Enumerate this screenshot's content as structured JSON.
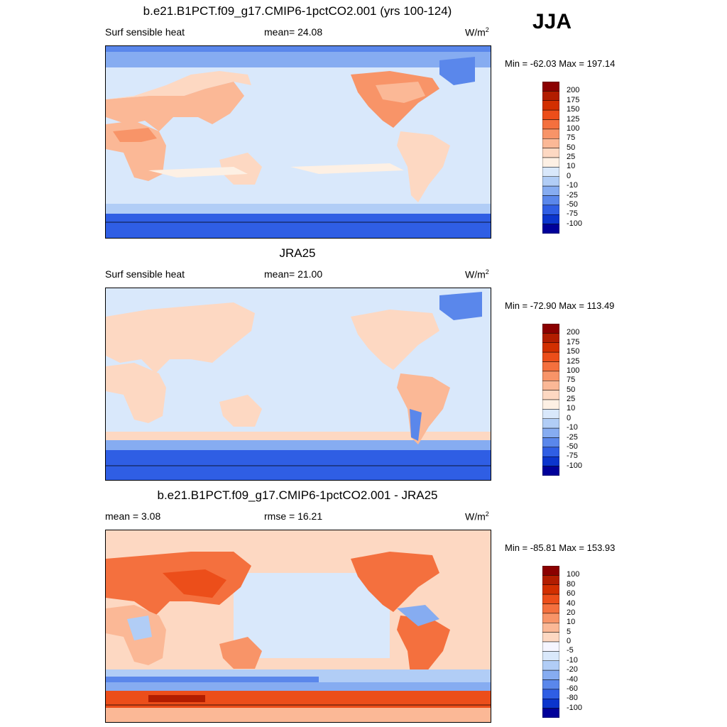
{
  "season": "JJA",
  "panels": [
    {
      "title": "b.e21.B1PCT.f09_g17.CMIP6-1pctCO2.001 (yrs 100-124)",
      "left_label": "Surf sensible heat",
      "center_label": "mean=  24.08",
      "units": "W/m",
      "units_sup": "2",
      "minmax": "Min = -62.03 Max = 197.14"
    },
    {
      "title": "JRA25",
      "left_label": "Surf sensible heat",
      "center_label": "mean=  21.00",
      "units": "W/m",
      "units_sup": "2",
      "minmax": "Min = -72.90 Max = 113.49"
    },
    {
      "title": "b.e21.B1PCT.f09_g17.CMIP6-1pctCO2.001 - JRA25",
      "left_label": "mean =   3.08",
      "center_label": "rmse =  16.21",
      "units": "W/m",
      "units_sup": "2",
      "minmax": "Min = -85.81 Max = 153.93"
    }
  ],
  "colorbars": {
    "abs": {
      "labels": [
        "200",
        "175",
        "150",
        "125",
        "100",
        "75",
        "50",
        "25",
        "10",
        "0",
        "-10",
        "-25",
        "-50",
        "-75",
        "-100"
      ],
      "colors": [
        "#8b0000",
        "#b21d00",
        "#d22f00",
        "#ec4e1a",
        "#f4703e",
        "#f89468",
        "#fbb896",
        "#fdd8c2",
        "#fdf0e4",
        "#d9e8fb",
        "#b1cdf6",
        "#86acf1",
        "#5a87eb",
        "#2f5ee4",
        "#0b35cd",
        "#00009a"
      ]
    },
    "diff": {
      "labels": [
        "100",
        "80",
        "60",
        "40",
        "20",
        "10",
        "5",
        "0",
        "-5",
        "-10",
        "-20",
        "-40",
        "-60",
        "-80",
        "-100"
      ],
      "colors": [
        "#8b0000",
        "#b21d00",
        "#d22f00",
        "#ec4e1a",
        "#f4703e",
        "#f89468",
        "#fbb896",
        "#fdd8c2",
        "#f5f5ff",
        "#d9e8fb",
        "#b1cdf6",
        "#86acf1",
        "#5a87eb",
        "#2f5ee4",
        "#0b35cd",
        "#00009a"
      ]
    }
  },
  "chart_data": [
    {
      "type": "heatmap",
      "title": "b.e21.B1PCT.f09_g17.CMIP6-1pctCO2.001 (yrs 100-124)",
      "variable": "Surf sensible heat",
      "season": "JJA",
      "units": "W/m2",
      "mean": 24.08,
      "min": -62.03,
      "max": 197.14,
      "levels": [
        -100,
        -75,
        -50,
        -25,
        -10,
        0,
        10,
        25,
        50,
        75,
        100,
        125,
        150,
        175,
        200
      ]
    },
    {
      "type": "heatmap",
      "title": "JRA25",
      "variable": "Surf sensible heat",
      "season": "JJA",
      "units": "W/m2",
      "mean": 21.0,
      "min": -72.9,
      "max": 113.49,
      "levels": [
        -100,
        -75,
        -50,
        -25,
        -10,
        0,
        10,
        25,
        50,
        75,
        100,
        125,
        150,
        175,
        200
      ]
    },
    {
      "type": "heatmap",
      "title": "b.e21.B1PCT.f09_g17.CMIP6-1pctCO2.001 - JRA25",
      "season": "JJA",
      "units": "W/m2",
      "mean": 3.08,
      "rmse": 16.21,
      "min": -85.81,
      "max": 153.93,
      "levels": [
        -100,
        -80,
        -60,
        -40,
        -20,
        -10,
        -5,
        0,
        5,
        10,
        20,
        40,
        60,
        80,
        100
      ]
    }
  ]
}
